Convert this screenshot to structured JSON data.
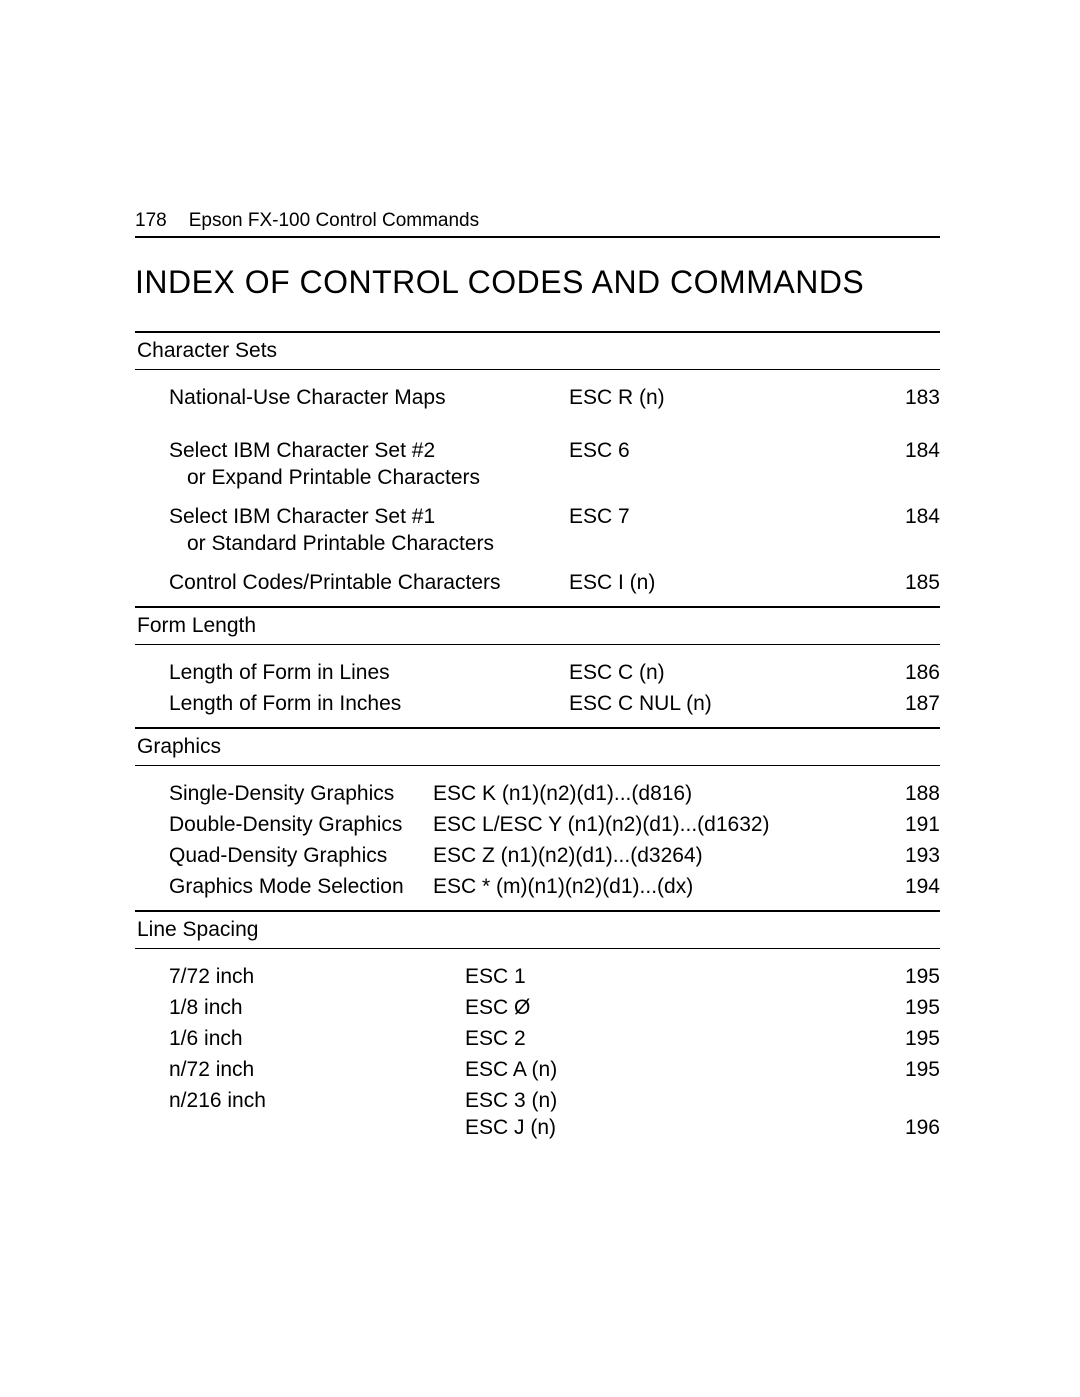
{
  "header": {
    "page_number": "178",
    "running_title": "Epson FX-100 Control Commands"
  },
  "title": "INDEX OF CONTROL CODES AND COMMANDS",
  "sections": [
    {
      "heading": "Character Sets",
      "layout": "wide",
      "entries": [
        {
          "desc": [
            "National-Use Character Maps"
          ],
          "code": [
            "ESC R (n)"
          ],
          "page": "183",
          "gap": "wide"
        },
        {
          "desc": [
            "Select IBM Character Set #2",
            "or Expand Printable Characters"
          ],
          "code": [
            "ESC 6"
          ],
          "page": "184",
          "gap": "med"
        },
        {
          "desc": [
            "Select IBM Character Set #1",
            "or Standard Printable Characters"
          ],
          "code": [
            "ESC 7"
          ],
          "page": "184",
          "gap": "med"
        },
        {
          "desc": [
            "Control Codes/Printable Characters"
          ],
          "code": [
            "ESC I (n)"
          ],
          "page": "185",
          "gap": ""
        }
      ]
    },
    {
      "heading": "Form Length",
      "layout": "wide",
      "entries": [
        {
          "desc": [
            "Length of Form in Lines"
          ],
          "code": [
            "ESC C (n)"
          ],
          "page": "186",
          "gap": ""
        },
        {
          "desc": [
            "Length of Form in Inches"
          ],
          "code": [
            "ESC C NUL (n)"
          ],
          "page": "187",
          "gap": ""
        }
      ]
    },
    {
      "heading": "Graphics",
      "layout": "narrow",
      "entries": [
        {
          "desc": [
            "Single-Density Graphics"
          ],
          "code": [
            "ESC K (n1)(n2)(d1)...(d816)"
          ],
          "page": "188",
          "gap": ""
        },
        {
          "desc": [
            "Double-Density Graphics"
          ],
          "code": [
            "ESC L/ESC Y (n1)(n2)(d1)...(d1632)"
          ],
          "page": "191",
          "gap": ""
        },
        {
          "desc": [
            "Quad-Density Graphics"
          ],
          "code": [
            "ESC Z (n1)(n2)(d1)...(d3264)"
          ],
          "page": "193",
          "gap": ""
        },
        {
          "desc": [
            "Graphics Mode Selection"
          ],
          "code": [
            "ESC * (m)(n1)(n2)(d1)...(dx)"
          ],
          "page": "194",
          "gap": ""
        }
      ]
    },
    {
      "heading": "Line Spacing",
      "layout": "ls",
      "entries": [
        {
          "desc": [
            "7/72 inch"
          ],
          "code": [
            "ESC 1"
          ],
          "page": "195",
          "gap": ""
        },
        {
          "desc": [
            "1/8 inch"
          ],
          "code": [
            "ESC Ø"
          ],
          "page": "195",
          "gap": ""
        },
        {
          "desc": [
            "1/6 inch"
          ],
          "code": [
            "ESC 2"
          ],
          "page": "195",
          "gap": ""
        },
        {
          "desc": [
            "n/72 inch"
          ],
          "code": [
            "ESC A (n)"
          ],
          "page": "195",
          "gap": ""
        },
        {
          "desc": [
            "n/216 inch"
          ],
          "code": [
            "ESC 3 (n)",
            "ESC J (n)"
          ],
          "page": "196",
          "gap": "",
          "pgalign": "bottom"
        }
      ]
    }
  ]
}
